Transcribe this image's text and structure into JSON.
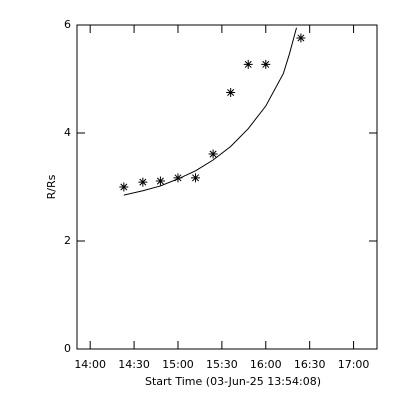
{
  "chart_data": {
    "type": "scatter",
    "xlabel": "Start Time (03-Jun-25 13:54:08)",
    "ylabel": "R/Rs",
    "xlim": [
      831,
      1036
    ],
    "xticks": [
      {
        "value": 840,
        "label": "14:00"
      },
      {
        "value": 870,
        "label": "14:30"
      },
      {
        "value": 900,
        "label": "15:00"
      },
      {
        "value": 930,
        "label": "15:30"
      },
      {
        "value": 960,
        "label": "16:00"
      },
      {
        "value": 990,
        "label": "16:30"
      },
      {
        "value": 1020,
        "label": "17:00"
      }
    ],
    "ylim": [
      0,
      6
    ],
    "yticks": [
      0,
      2,
      4,
      6
    ],
    "color": "#000000",
    "points": {
      "x": [
        863,
        876,
        888,
        900,
        912,
        924,
        936,
        948,
        960,
        984
      ],
      "y": [
        3.0,
        3.09,
        3.11,
        3.17,
        3.17,
        3.61,
        4.75,
        5.27,
        5.27,
        5.76
      ]
    },
    "fit": {
      "x": [
        863,
        876,
        888,
        900,
        912,
        924,
        936,
        948,
        960,
        972,
        976,
        981
      ],
      "y": [
        2.85,
        2.93,
        3.02,
        3.15,
        3.3,
        3.5,
        3.75,
        4.08,
        4.5,
        5.1,
        5.45,
        5.95
      ]
    }
  }
}
